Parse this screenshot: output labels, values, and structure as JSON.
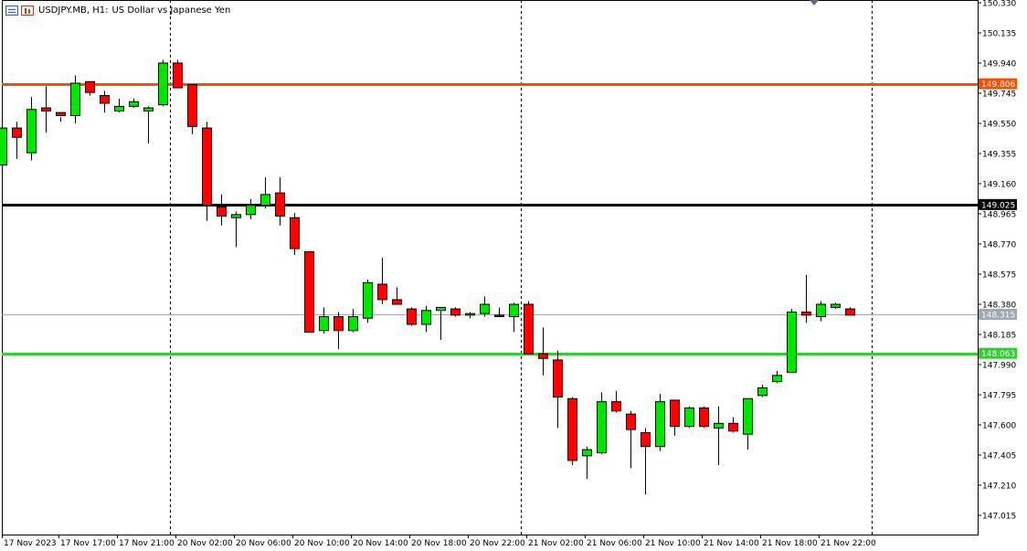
{
  "header": {
    "symbol": "USDJPY.MB, H1:",
    "description": "US Dollar vs Japanese Yen",
    "icons": [
      "one-click-trading-icon",
      "chart-settings-icon"
    ]
  },
  "colors": {
    "bull": "#00e600",
    "bear": "#ff0000",
    "wick": "#000000",
    "grid_separator": "#000000",
    "line_orange": "#ff4d00",
    "line_black": "#000000",
    "line_green": "#33cc33",
    "line_price": "#a0a8b0"
  },
  "chart_data": {
    "type": "candlestick",
    "symbol": "USDJPY.MB",
    "timeframe": "H1",
    "ylim": [
      146.9,
      150.35
    ],
    "y_ticks": [
      "150.330",
      "150.135",
      "149.940",
      "149.745",
      "149.550",
      "149.355",
      "149.160",
      "148.965",
      "148.770",
      "148.575",
      "148.380",
      "148.185",
      "147.990",
      "147.795",
      "147.600",
      "147.405",
      "147.210",
      "147.015"
    ],
    "x_ticks": [
      {
        "label": "17 Nov 2023",
        "index": 0
      },
      {
        "label": "17 Nov 17:00",
        "index": 4
      },
      {
        "label": "17 Nov 21:00",
        "index": 8
      },
      {
        "label": "20 Nov 02:00",
        "index": 12
      },
      {
        "label": "20 Nov 06:00",
        "index": 16
      },
      {
        "label": "20 Nov 10:00",
        "index": 20
      },
      {
        "label": "20 Nov 14:00",
        "index": 24
      },
      {
        "label": "20 Nov 18:00",
        "index": 28
      },
      {
        "label": "20 Nov 22:00",
        "index": 32
      },
      {
        "label": "21 Nov 02:00",
        "index": 36
      },
      {
        "label": "21 Nov 06:00",
        "index": 40
      },
      {
        "label": "21 Nov 10:00",
        "index": 44
      },
      {
        "label": "21 Nov 14:00",
        "index": 48
      },
      {
        "label": "21 Nov 18:00",
        "index": 52
      },
      {
        "label": "21 Nov 22:00",
        "index": 56
      }
    ],
    "separators": [
      9.5,
      33.5,
      57.5
    ],
    "first_partial_candle": {
      "open": 149.28,
      "high": 149.56,
      "low": 149.27,
      "close": 149.52
    },
    "candles": [
      {
        "open": 149.52,
        "high": 149.56,
        "low": 149.32,
        "close": 149.46
      },
      {
        "open": 149.36,
        "high": 149.72,
        "low": 149.31,
        "close": 149.64
      },
      {
        "open": 149.65,
        "high": 149.79,
        "low": 149.49,
        "close": 149.63
      },
      {
        "open": 149.62,
        "high": 149.59,
        "low": 149.56,
        "close": 149.6
      },
      {
        "open": 149.6,
        "high": 149.86,
        "low": 149.55,
        "close": 149.81
      },
      {
        "open": 149.82,
        "high": 149.82,
        "low": 149.73,
        "close": 149.75
      },
      {
        "open": 149.73,
        "high": 149.76,
        "low": 149.62,
        "close": 149.68
      },
      {
        "open": 149.63,
        "high": 149.71,
        "low": 149.62,
        "close": 149.66
      },
      {
        "open": 149.66,
        "high": 149.71,
        "low": 149.65,
        "close": 149.69
      },
      {
        "open": 149.63,
        "high": 149.66,
        "low": 149.42,
        "close": 149.65
      },
      {
        "open": 149.67,
        "high": 149.96,
        "low": 149.66,
        "close": 149.94
      },
      {
        "open": 149.94,
        "high": 149.96,
        "low": 149.78,
        "close": 149.78
      },
      {
        "open": 149.8,
        "high": 149.8,
        "low": 149.48,
        "close": 149.53
      },
      {
        "open": 149.52,
        "high": 149.56,
        "low": 148.92,
        "close": 149.02
      },
      {
        "open": 149.01,
        "high": 149.09,
        "low": 148.89,
        "close": 148.95
      },
      {
        "open": 148.94,
        "high": 148.98,
        "low": 148.75,
        "close": 148.96
      },
      {
        "open": 148.96,
        "high": 149.06,
        "low": 148.93,
        "close": 149.02
      },
      {
        "open": 149.02,
        "high": 149.2,
        "low": 149.0,
        "close": 149.09
      },
      {
        "open": 149.1,
        "high": 149.2,
        "low": 148.89,
        "close": 148.95
      },
      {
        "open": 148.94,
        "high": 148.97,
        "low": 148.7,
        "close": 148.74
      },
      {
        "open": 148.72,
        "high": 148.72,
        "low": 148.2,
        "close": 148.2
      },
      {
        "open": 148.21,
        "high": 148.36,
        "low": 148.19,
        "close": 148.3
      },
      {
        "open": 148.3,
        "high": 148.33,
        "low": 148.09,
        "close": 148.21
      },
      {
        "open": 148.21,
        "high": 148.35,
        "low": 148.2,
        "close": 148.3
      },
      {
        "open": 148.29,
        "high": 148.54,
        "low": 148.26,
        "close": 148.52
      },
      {
        "open": 148.51,
        "high": 148.68,
        "low": 148.38,
        "close": 148.41
      },
      {
        "open": 148.41,
        "high": 148.49,
        "low": 148.38,
        "close": 148.38
      },
      {
        "open": 148.35,
        "high": 148.36,
        "low": 148.24,
        "close": 148.25
      },
      {
        "open": 148.25,
        "high": 148.37,
        "low": 148.2,
        "close": 148.34
      },
      {
        "open": 148.34,
        "high": 148.36,
        "low": 148.15,
        "close": 148.36
      },
      {
        "open": 148.35,
        "high": 148.36,
        "low": 148.3,
        "close": 148.31
      },
      {
        "open": 148.31,
        "high": 148.33,
        "low": 148.29,
        "close": 148.32
      },
      {
        "open": 148.32,
        "high": 148.43,
        "low": 148.3,
        "close": 148.38
      },
      {
        "open": 148.31,
        "high": 148.36,
        "low": 148.3,
        "close": 148.3
      },
      {
        "open": 148.3,
        "high": 148.39,
        "low": 148.2,
        "close": 148.38
      },
      {
        "open": 148.38,
        "high": 148.4,
        "low": 148.06,
        "close": 148.06
      },
      {
        "open": 148.06,
        "high": 148.23,
        "low": 147.92,
        "close": 148.03
      },
      {
        "open": 148.02,
        "high": 148.08,
        "low": 147.58,
        "close": 147.78
      },
      {
        "open": 147.77,
        "high": 147.78,
        "low": 147.34,
        "close": 147.37
      },
      {
        "open": 147.4,
        "high": 147.46,
        "low": 147.25,
        "close": 147.44
      },
      {
        "open": 147.42,
        "high": 147.81,
        "low": 147.41,
        "close": 147.75
      },
      {
        "open": 147.75,
        "high": 147.82,
        "low": 147.68,
        "close": 147.69
      },
      {
        "open": 147.67,
        "high": 147.69,
        "low": 147.32,
        "close": 147.57
      },
      {
        "open": 147.55,
        "high": 147.58,
        "low": 147.15,
        "close": 147.46
      },
      {
        "open": 147.46,
        "high": 147.8,
        "low": 147.43,
        "close": 147.75
      },
      {
        "open": 147.76,
        "high": 147.76,
        "low": 147.53,
        "close": 147.59
      },
      {
        "open": 147.59,
        "high": 147.72,
        "low": 147.58,
        "close": 147.71
      },
      {
        "open": 147.71,
        "high": 147.72,
        "low": 147.58,
        "close": 147.59
      },
      {
        "open": 147.58,
        "high": 147.72,
        "low": 147.34,
        "close": 147.61
      },
      {
        "open": 147.61,
        "high": 147.65,
        "low": 147.55,
        "close": 147.56
      },
      {
        "open": 147.54,
        "high": 147.77,
        "low": 147.44,
        "close": 147.77
      },
      {
        "open": 147.79,
        "high": 147.86,
        "low": 147.78,
        "close": 147.84
      },
      {
        "open": 147.88,
        "high": 147.95,
        "low": 147.87,
        "close": 147.92
      },
      {
        "open": 147.94,
        "high": 148.35,
        "low": 147.94,
        "close": 148.33
      },
      {
        "open": 148.33,
        "high": 148.57,
        "low": 148.26,
        "close": 148.31
      },
      {
        "open": 148.3,
        "high": 148.4,
        "low": 148.27,
        "close": 148.38
      },
      {
        "open": 148.36,
        "high": 148.39,
        "low": 148.35,
        "close": 148.38
      },
      {
        "open": 148.35,
        "high": 148.36,
        "low": 148.31,
        "close": 148.31
      }
    ],
    "levels": [
      {
        "name": "resistance-line",
        "price": 149.806,
        "label": "149.806",
        "color": "#ff4d00",
        "width": 3
      },
      {
        "name": "pivot-line",
        "price": 149.025,
        "label": "149.025",
        "color": "#000000",
        "width": 3
      },
      {
        "name": "current-price-line",
        "price": 148.315,
        "label": "148.315",
        "color": "#a0a8b0",
        "width": 1
      },
      {
        "name": "support-line",
        "price": 148.063,
        "label": "148.063",
        "color": "#33cc33",
        "width": 3
      }
    ]
  }
}
